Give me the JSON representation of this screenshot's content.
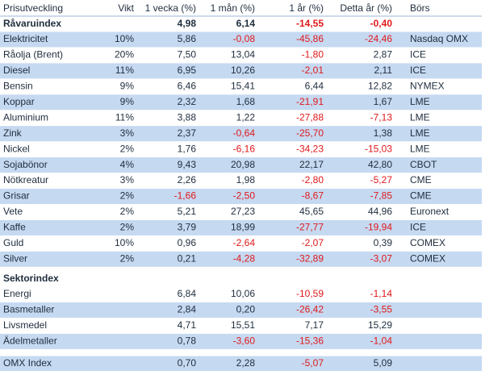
{
  "header": [
    "Prisutveckling",
    "Vikt",
    "1 vecka (%)",
    "1 mån (%)",
    "1 år (%)",
    "Detta år (%)",
    "Börs"
  ],
  "raw_index": {
    "name": "Råvaruindex",
    "week": "4,98",
    "month": "6,14",
    "year": "-14,55",
    "ytd": "-0,40"
  },
  "commodities": [
    {
      "name": "Elektricitet",
      "weight": "10%",
      "week": "5,86",
      "month": "-0,08",
      "year": "-45,86",
      "ytd": "-24,46",
      "exchange": "Nasdaq OMX"
    },
    {
      "name": "Råolja (Brent)",
      "weight": "20%",
      "week": "7,50",
      "month": "13,04",
      "year": "-1,80",
      "ytd": "2,87",
      "exchange": "ICE"
    },
    {
      "name": "Diesel",
      "weight": "11%",
      "week": "6,95",
      "month": "10,26",
      "year": "-2,01",
      "ytd": "2,11",
      "exchange": "ICE"
    },
    {
      "name": "Bensin",
      "weight": "9%",
      "week": "6,46",
      "month": "15,41",
      "year": "6,44",
      "ytd": "12,82",
      "exchange": "NYMEX"
    },
    {
      "name": "Koppar",
      "weight": "9%",
      "week": "2,32",
      "month": "1,68",
      "year": "-21,91",
      "ytd": "1,67",
      "exchange": "LME"
    },
    {
      "name": "Aluminium",
      "weight": "11%",
      "week": "3,88",
      "month": "1,22",
      "year": "-27,88",
      "ytd": "-7,13",
      "exchange": "LME"
    },
    {
      "name": "Zink",
      "weight": "3%",
      "week": "2,37",
      "month": "-0,64",
      "year": "-25,70",
      "ytd": "1,38",
      "exchange": "LME"
    },
    {
      "name": "Nickel",
      "weight": "2%",
      "week": "1,76",
      "month": "-6,16",
      "year": "-34,23",
      "ytd": "-15,03",
      "exchange": "LME"
    },
    {
      "name": "Sojabönor",
      "weight": "4%",
      "week": "9,43",
      "month": "20,98",
      "year": "22,17",
      "ytd": "42,80",
      "exchange": "CBOT"
    },
    {
      "name": "Nötkreatur",
      "weight": "3%",
      "week": "2,26",
      "month": "1,98",
      "year": "-2,80",
      "ytd": "-5,27",
      "exchange": "CME"
    },
    {
      "name": "Grisar",
      "weight": "2%",
      "week": "-1,66",
      "month": "-2,50",
      "year": "-8,67",
      "ytd": "-7,85",
      "exchange": "CME"
    },
    {
      "name": "Vete",
      "weight": "2%",
      "week": "5,21",
      "month": "27,23",
      "year": "45,65",
      "ytd": "44,96",
      "exchange": "Euronext"
    },
    {
      "name": "Kaffe",
      "weight": "2%",
      "week": "3,79",
      "month": "18,99",
      "year": "-27,77",
      "ytd": "-19,94",
      "exchange": "ICE"
    },
    {
      "name": "Guld",
      "weight": "10%",
      "week": "0,96",
      "month": "-2,64",
      "year": "-2,07",
      "ytd": "0,39",
      "exchange": "COMEX"
    },
    {
      "name": "Silver",
      "weight": "2%",
      "week": "0,21",
      "month": "-4,28",
      "year": "-32,89",
      "ytd": "-3,07",
      "exchange": "COMEX"
    }
  ],
  "sector_title": "Sektorindex",
  "sectors": [
    {
      "name": "Energi",
      "week": "6,84",
      "month": "10,06",
      "year": "-10,59",
      "ytd": "-1,14"
    },
    {
      "name": "Basmetaller",
      "week": "2,84",
      "month": "0,20",
      "year": "-26,42",
      "ytd": "-3,55"
    },
    {
      "name": "Livsmedel",
      "week": "4,71",
      "month": "15,51",
      "year": "7,17",
      "ytd": "15,29"
    },
    {
      "name": "Ädelmetaller",
      "week": "0,78",
      "month": "-3,60",
      "year": "-15,36",
      "ytd": "-1,04"
    }
  ],
  "omx": {
    "name": "OMX Index",
    "week": "0,70",
    "month": "2,28",
    "year": "-5,07",
    "ytd": "5,09"
  }
}
